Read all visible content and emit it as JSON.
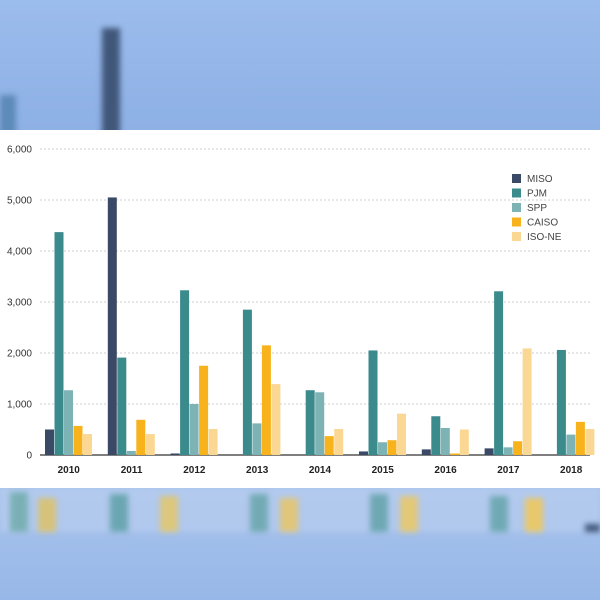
{
  "chart_data": {
    "type": "bar",
    "title": "",
    "xlabel": "",
    "ylabel": "",
    "categories": [
      "2010",
      "2011",
      "2012",
      "2013",
      "2014",
      "2015",
      "2016",
      "2017",
      "2018"
    ],
    "ylim": [
      0,
      6000
    ],
    "yticks": [
      0,
      1000,
      2000,
      3000,
      4000,
      5000,
      6000
    ],
    "ytick_labels": [
      "0",
      "1,000",
      "2,000",
      "3,000",
      "4,000",
      "5,000",
      "6,000"
    ],
    "grid": true,
    "legend_position": "top-right",
    "series": [
      {
        "name": "MISO",
        "color": "#3a4a66",
        "values": [
          500,
          5050,
          30,
          0,
          0,
          70,
          110,
          130,
          0
        ]
      },
      {
        "name": "PJM",
        "color": "#3b8a8c",
        "values": [
          4370,
          1910,
          3230,
          2850,
          1270,
          2050,
          760,
          3210,
          2060
        ]
      },
      {
        "name": "SPP",
        "color": "#7db3b5",
        "values": [
          1270,
          80,
          1000,
          620,
          1230,
          250,
          530,
          150,
          400
        ]
      },
      {
        "name": "CAISO",
        "color": "#f7b21c",
        "values": [
          570,
          690,
          1750,
          2150,
          370,
          290,
          30,
          270,
          650
        ]
      },
      {
        "name": "ISO-NE",
        "color": "#fbd794",
        "values": [
          410,
          410,
          510,
          1390,
          510,
          810,
          500,
          2090,
          510
        ]
      }
    ]
  }
}
